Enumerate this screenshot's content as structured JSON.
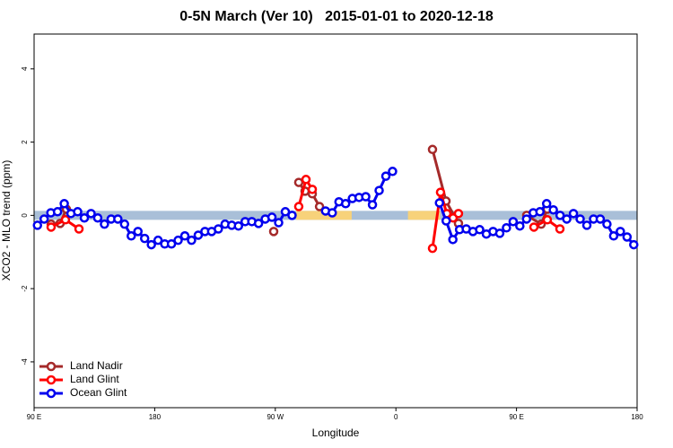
{
  "chart_data": {
    "type": "line",
    "title": "0-5N March (Ver 10)   2015-01-01 to 2020-12-18",
    "x_label": "Longitude",
    "y_label": "XCO2 - MLO trend (ppm)",
    "xlim": [
      90,
      540
    ],
    "ylim": [
      -5.25,
      4.95
    ],
    "xticks": [
      {
        "value": 90,
        "label": "90 E"
      },
      {
        "value": 180,
        "label": "180"
      },
      {
        "value": 270,
        "label": "90 W"
      },
      {
        "value": 360,
        "label": "0"
      },
      {
        "value": 450,
        "label": "90 E"
      },
      {
        "value": 540,
        "label": "180"
      }
    ],
    "yticks": [
      -4,
      -2,
      0,
      2,
      4
    ],
    "legend": "bottomleft",
    "band": {
      "color": "#a9bfd8",
      "land_color": "#f7d27a",
      "land_spans": [
        [
          285.5,
          327
        ],
        [
          369,
          393
        ]
      ]
    },
    "series": [
      {
        "name": "Land Nadir",
        "color": "#a52a2a",
        "x": [
          102.7,
          109.4,
          114.1,
          200,
          268.8,
          280,
          287.5,
          292.2,
          297.6,
          303,
          350,
          387.3,
          397.4,
          406.7,
          430,
          457.6,
          468.4,
          473
        ],
        "values": [
          -0.24,
          -0.22,
          0.17,
          null,
          -0.44,
          null,
          0.9,
          0.66,
          0.59,
          0.24,
          null,
          1.8,
          0.39,
          -0.22,
          null,
          0,
          -0.24,
          0.17
        ]
      },
      {
        "name": "Land Glint",
        "color": "#ff0000",
        "x": [
          102.7,
          113.4,
          123.5,
          200,
          287.5,
          292.9,
          297.6,
          350,
          387.3,
          393.3,
          398,
          402.7,
          406.7,
          430,
          463,
          473,
          482.4
        ],
        "values": [
          -0.32,
          -0.12,
          -0.37,
          null,
          0.24,
          0.98,
          0.71,
          null,
          -0.9,
          0.63,
          0.05,
          -0.07,
          0.05,
          null,
          -0.32,
          -0.12,
          -0.37
        ]
      },
      {
        "name": "Ocean Glint",
        "color": "#0000ee",
        "x": [
          92.5,
          97.5,
          102.5,
          107.5,
          112.5,
          117.5,
          122.5,
          127.5,
          132.5,
          137.5,
          142.5,
          147.5,
          152.5,
          157.5,
          162.5,
          167.5,
          172.5,
          177.5,
          182.5,
          187.5,
          192.5,
          197.5,
          202.5,
          207.5,
          212.5,
          217.5,
          222.5,
          227.5,
          232.5,
          237.5,
          242.5,
          247.5,
          252.5,
          257.5,
          262.5,
          267.5,
          272.5,
          277.5,
          282.5,
          300,
          307.5,
          312.5,
          317.5,
          322.5,
          327.5,
          332.5,
          337.5,
          342.5,
          347.5,
          352.5,
          357.5,
          370,
          392.5,
          397.5,
          402.5,
          407.5,
          412.5,
          417.5,
          422.5,
          427.5,
          432.5,
          437.5,
          442.5,
          447.5,
          452.5,
          457.5,
          462.5,
          467.5,
          472.5,
          477.5,
          482.5,
          487.5,
          492.5,
          497.5,
          502.5,
          507.5,
          512.5,
          517.5,
          522.5,
          527.5,
          532.5,
          537.5
        ],
        "values": [
          -0.27,
          -0.1,
          0.07,
          0.1,
          0.32,
          0.05,
          0.1,
          -0.07,
          0.05,
          -0.07,
          -0.24,
          -0.1,
          -0.1,
          -0.24,
          -0.56,
          -0.44,
          -0.63,
          -0.8,
          -0.68,
          -0.78,
          -0.78,
          -0.68,
          -0.56,
          -0.68,
          -0.54,
          -0.44,
          -0.44,
          -0.37,
          -0.24,
          -0.27,
          -0.29,
          -0.17,
          -0.17,
          -0.22,
          -0.1,
          -0.05,
          -0.2,
          0.1,
          0,
          null,
          0.12,
          0.07,
          0.37,
          0.32,
          0.46,
          0.49,
          0.51,
          0.29,
          0.68,
          1.07,
          1.2,
          null,
          0.34,
          -0.15,
          -0.66,
          -0.39,
          -0.37,
          -0.44,
          -0.39,
          -0.51,
          -0.44,
          -0.49,
          -0.34,
          -0.17,
          -0.29,
          -0.1,
          0.07,
          0.1,
          0.32,
          0.15,
          0,
          -0.1,
          0.05,
          -0.1,
          -0.27,
          -0.1,
          -0.1,
          -0.24,
          -0.56,
          -0.44,
          -0.59,
          -0.8
        ]
      }
    ]
  }
}
